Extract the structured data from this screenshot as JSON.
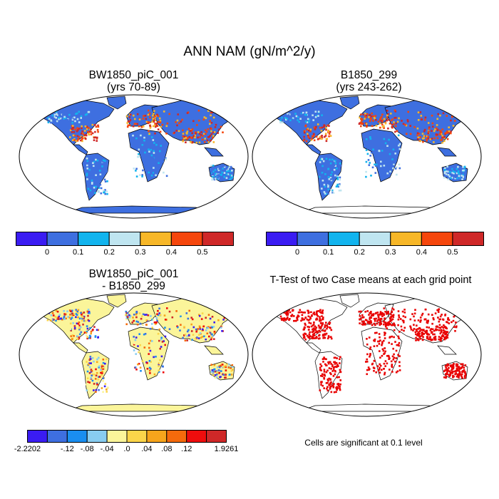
{
  "title": "ANN NAM (gN/m^2/y)",
  "panels": [
    {
      "title_line1": "BW1850_piC_001",
      "title_line2": "(yrs 70-89)"
    },
    {
      "title_line1": "B1850_299",
      "title_line2": "(yrs 243-262)"
    },
    {
      "title_line1": "BW1850_piC_001",
      "title_line2": "- B1850_299"
    },
    {
      "title_line1": "T-Test of two Case means at each grid point",
      "title_line2": ""
    }
  ],
  "colorbar_abs": {
    "colors": [
      "#3a1cf2",
      "#3e6fe0",
      "#12b4ee",
      "#bfe5f0",
      "#f7b728",
      "#f5460c",
      "#cf2828"
    ],
    "labels": [
      "0",
      "0.1",
      "0.2",
      "0.3",
      "0.4",
      "0.5"
    ]
  },
  "colorbar_diff": {
    "colors": [
      "#3a1cf2",
      "#3e6fe0",
      "#1a8ef0",
      "#88ccf0",
      "#fbf59a",
      "#fbd54a",
      "#f7a51c",
      "#f56a0c",
      "#ee0d0d",
      "#cf2828"
    ],
    "labels": [
      "-2.2202",
      "-.12",
      "-.08",
      "-.04",
      ".0",
      ".04",
      ".08",
      ".12",
      "1.9261"
    ]
  },
  "significance_note": "Cells are significant at 0.1 level",
  "colors": {
    "land_base": "#3e6fe0",
    "hotspot": "#cf2828",
    "signif": "#e80000",
    "diff_base": "#fbf59a"
  }
}
